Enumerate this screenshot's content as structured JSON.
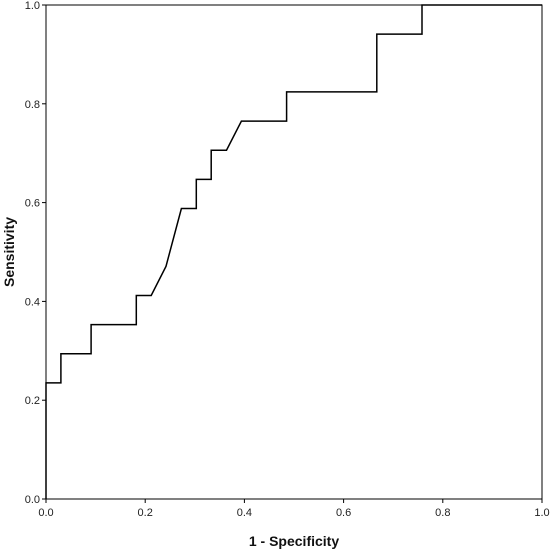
{
  "chart_data": {
    "type": "line",
    "title": "",
    "xlabel": "1 - Specificity",
    "ylabel": "Sensitivity",
    "xlim": [
      0,
      1
    ],
    "ylim": [
      0,
      1
    ],
    "x_ticks": [
      "0.0",
      "0.2",
      "0.4",
      "0.6",
      "0.8",
      "1.0"
    ],
    "y_ticks": [
      "0.0",
      "0.2",
      "0.4",
      "0.6",
      "0.8",
      "1.0"
    ],
    "grid": false,
    "legend": "none",
    "line_color": "#000000",
    "series": [
      {
        "x": [
          0.0,
          0.0,
          0.03,
          0.03,
          0.091,
          0.091,
          0.182,
          0.182,
          0.212,
          0.242,
          0.273,
          0.303,
          0.303,
          0.333,
          0.333,
          0.364,
          0.394,
          0.485,
          0.485,
          0.667,
          0.667,
          0.758,
          0.758,
          1.0
        ],
        "y": [
          0.0,
          0.235,
          0.235,
          0.294,
          0.294,
          0.353,
          0.353,
          0.412,
          0.412,
          0.471,
          0.588,
          0.588,
          0.647,
          0.647,
          0.706,
          0.706,
          0.765,
          0.765,
          0.824,
          0.824,
          0.941,
          0.941,
          1.0,
          1.0
        ]
      }
    ]
  }
}
